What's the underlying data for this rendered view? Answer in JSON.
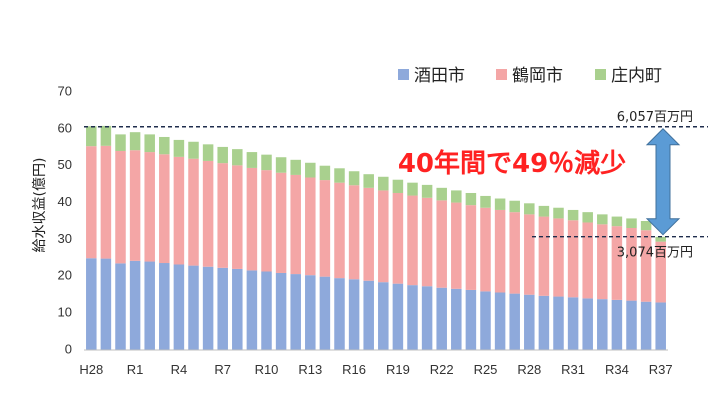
{
  "chart_data": {
    "type": "bar",
    "stacked": true,
    "title": "",
    "ylabel": "給水収益(億円)",
    "xlabel": "",
    "ylim": [
      0,
      70
    ],
    "yticks": [
      0,
      10,
      20,
      30,
      40,
      50,
      60,
      70
    ],
    "grid": false,
    "legend_position": "top-right",
    "x_tick_labels": [
      "H28",
      "R1",
      "R4",
      "R7",
      "R10",
      "R13",
      "R16",
      "R19",
      "R22",
      "R25",
      "R28",
      "R31",
      "R34",
      "R37"
    ],
    "categories": [
      "H28",
      "H29",
      "H30",
      "R1",
      "R2",
      "R3",
      "R4",
      "R5",
      "R6",
      "R7",
      "R8",
      "R9",
      "R10",
      "R11",
      "R12",
      "R13",
      "R14",
      "R15",
      "R16",
      "R17",
      "R18",
      "R19",
      "R20",
      "R21",
      "R22",
      "R23",
      "R24",
      "R25",
      "R26",
      "R27",
      "R28",
      "R29",
      "R30",
      "R31",
      "R32",
      "R33",
      "R34",
      "R35",
      "R36",
      "R37"
    ],
    "series": [
      {
        "name": "酒田市",
        "color": "#8ea9db",
        "values": [
          24.9,
          24.8,
          23.5,
          24.2,
          24.0,
          23.6,
          23.2,
          22.9,
          22.6,
          22.3,
          22.0,
          21.6,
          21.3,
          20.9,
          20.6,
          20.3,
          19.9,
          19.5,
          19.2,
          18.8,
          18.4,
          18.0,
          17.6,
          17.3,
          16.9,
          16.6,
          16.3,
          15.9,
          15.6,
          15.3,
          15.0,
          14.7,
          14.5,
          14.3,
          14.0,
          13.8,
          13.6,
          13.4,
          13.1,
          12.9
        ]
      },
      {
        "name": "鶴岡市",
        "color": "#f4a6a6",
        "values": [
          30.4,
          30.6,
          30.5,
          30.0,
          29.7,
          29.5,
          29.2,
          29.0,
          28.7,
          28.4,
          28.1,
          27.8,
          27.5,
          27.2,
          26.9,
          26.5,
          26.2,
          25.9,
          25.5,
          25.2,
          24.9,
          24.6,
          24.3,
          24.0,
          23.7,
          23.4,
          23.0,
          22.7,
          22.4,
          22.1,
          21.8,
          21.5,
          21.2,
          20.9,
          20.6,
          20.3,
          20.0,
          19.7,
          19.4,
          16.5
        ]
      },
      {
        "name": "庄内町",
        "color": "#a9d08e",
        "values": [
          5.4,
          5.4,
          4.5,
          4.9,
          4.8,
          4.7,
          4.6,
          4.6,
          4.5,
          4.4,
          4.4,
          4.3,
          4.2,
          4.2,
          4.1,
          4.0,
          3.9,
          3.9,
          3.8,
          3.7,
          3.7,
          3.6,
          3.5,
          3.5,
          3.4,
          3.3,
          3.3,
          3.2,
          3.1,
          3.1,
          3.0,
          2.9,
          2.9,
          2.8,
          2.8,
          2.7,
          2.6,
          2.6,
          2.5,
          1.3
        ]
      }
    ],
    "annotations": {
      "top_note": "6,057百万円",
      "bottom_note": "3,074百万円",
      "headline": "40年間で49％減少",
      "top_level": 60.57,
      "bottom_level": 30.74,
      "arrow_color": "#5b9bd5"
    }
  }
}
